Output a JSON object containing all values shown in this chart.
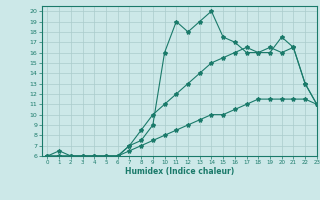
{
  "xlabel": "Humidex (Indice chaleur)",
  "bg_color": "#cce8e8",
  "line_color": "#1a7a6a",
  "grid_color": "#aacccc",
  "xlim": [
    -0.5,
    23
  ],
  "ylim": [
    6,
    20.5
  ],
  "xticks": [
    0,
    1,
    2,
    3,
    4,
    5,
    6,
    7,
    8,
    9,
    10,
    11,
    12,
    13,
    14,
    15,
    16,
    17,
    18,
    19,
    20,
    21,
    22,
    23
  ],
  "yticks": [
    6,
    7,
    8,
    9,
    10,
    11,
    12,
    13,
    14,
    15,
    16,
    17,
    18,
    19,
    20
  ],
  "line1_x": [
    0,
    1,
    2,
    3,
    4,
    5,
    6,
    7,
    8,
    9,
    10,
    11,
    12,
    13,
    14,
    15,
    16,
    17,
    18,
    19,
    20,
    21,
    22,
    23
  ],
  "line1_y": [
    6,
    6.5,
    6,
    6,
    6,
    6,
    6,
    7,
    7.5,
    9,
    16,
    19,
    18,
    19,
    20,
    17.5,
    17,
    16,
    16,
    16,
    17.5,
    16.5,
    13,
    11
  ],
  "line2_x": [
    0,
    1,
    2,
    3,
    4,
    5,
    6,
    7,
    8,
    9,
    10,
    11,
    12,
    13,
    14,
    15,
    16,
    17,
    18,
    19,
    20,
    21,
    22,
    23
  ],
  "line2_y": [
    6,
    6,
    6,
    6,
    6,
    6,
    6,
    7,
    8.5,
    10,
    11,
    12,
    13,
    14,
    15,
    15.5,
    16,
    16.5,
    16,
    16.5,
    16,
    16.5,
    13,
    11
  ],
  "line3_x": [
    0,
    1,
    2,
    3,
    4,
    5,
    6,
    7,
    8,
    9,
    10,
    11,
    12,
    13,
    14,
    15,
    16,
    17,
    18,
    19,
    20,
    21,
    22,
    23
  ],
  "line3_y": [
    6,
    6,
    6,
    6,
    6,
    6,
    6,
    6.5,
    7,
    7.5,
    8,
    8.5,
    9,
    9.5,
    10,
    10,
    10.5,
    11,
    11.5,
    11.5,
    11.5,
    11.5,
    11.5,
    11
  ]
}
